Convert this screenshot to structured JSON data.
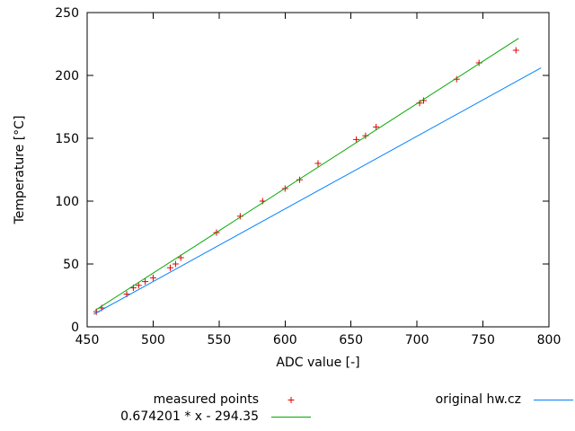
{
  "chart_data": {
    "type": "scatter",
    "title": "",
    "xlabel": "ADC value [-]",
    "ylabel": "Temperature [°C]",
    "xlim": [
      450,
      800
    ],
    "ylim": [
      0,
      250
    ],
    "xticks": [
      450,
      500,
      550,
      600,
      650,
      700,
      750,
      800
    ],
    "yticks": [
      0,
      50,
      100,
      150,
      200,
      250
    ],
    "grid": false,
    "legend_position": "below",
    "series": [
      {
        "name": "measured points",
        "type": "points",
        "marker": "plus",
        "color": "#e00000",
        "points": [
          [
            457,
            12
          ],
          [
            461,
            15
          ],
          [
            480,
            26
          ],
          [
            485,
            31
          ],
          [
            489,
            33
          ],
          [
            494,
            36
          ],
          [
            500,
            39
          ],
          [
            513,
            47
          ],
          [
            517,
            50
          ],
          [
            521,
            55
          ],
          [
            548,
            75
          ],
          [
            566,
            88
          ],
          [
            583,
            100
          ],
          [
            600,
            110
          ],
          [
            611,
            117
          ],
          [
            625,
            130
          ],
          [
            654,
            149
          ],
          [
            661,
            152
          ],
          [
            669,
            159
          ],
          [
            702,
            178
          ],
          [
            705,
            180
          ],
          [
            730,
            197
          ],
          [
            747,
            210
          ],
          [
            775,
            220
          ]
        ]
      },
      {
        "name": "0.674201 * x - 294.35",
        "type": "line",
        "color": "#00a800",
        "fit": {
          "slope": 0.674201,
          "intercept": -294.35
        },
        "x_range": [
          456,
          777
        ]
      },
      {
        "name": "original hw.cz",
        "type": "line",
        "color": "#0080ff",
        "points": [
          [
            455,
            10
          ],
          [
            794,
            206
          ]
        ]
      }
    ]
  }
}
